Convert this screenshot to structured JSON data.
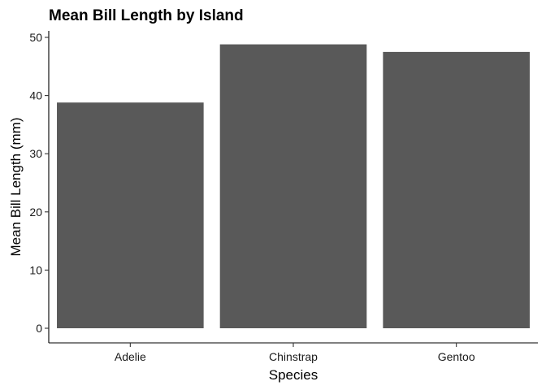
{
  "chart_data": {
    "type": "bar",
    "title": "Mean Bill Length by Island",
    "xlabel": "Species",
    "ylabel": "Mean Bill Length (mm)",
    "categories": [
      "Adelie",
      "Chinstrap",
      "Gentoo"
    ],
    "values": [
      38.8,
      48.8,
      47.5
    ],
    "ylim": [
      0,
      51.5
    ],
    "yticks": [
      0,
      10,
      20,
      30,
      40,
      50
    ],
    "grid": false,
    "legend": "none",
    "bar_color": "#595959"
  }
}
